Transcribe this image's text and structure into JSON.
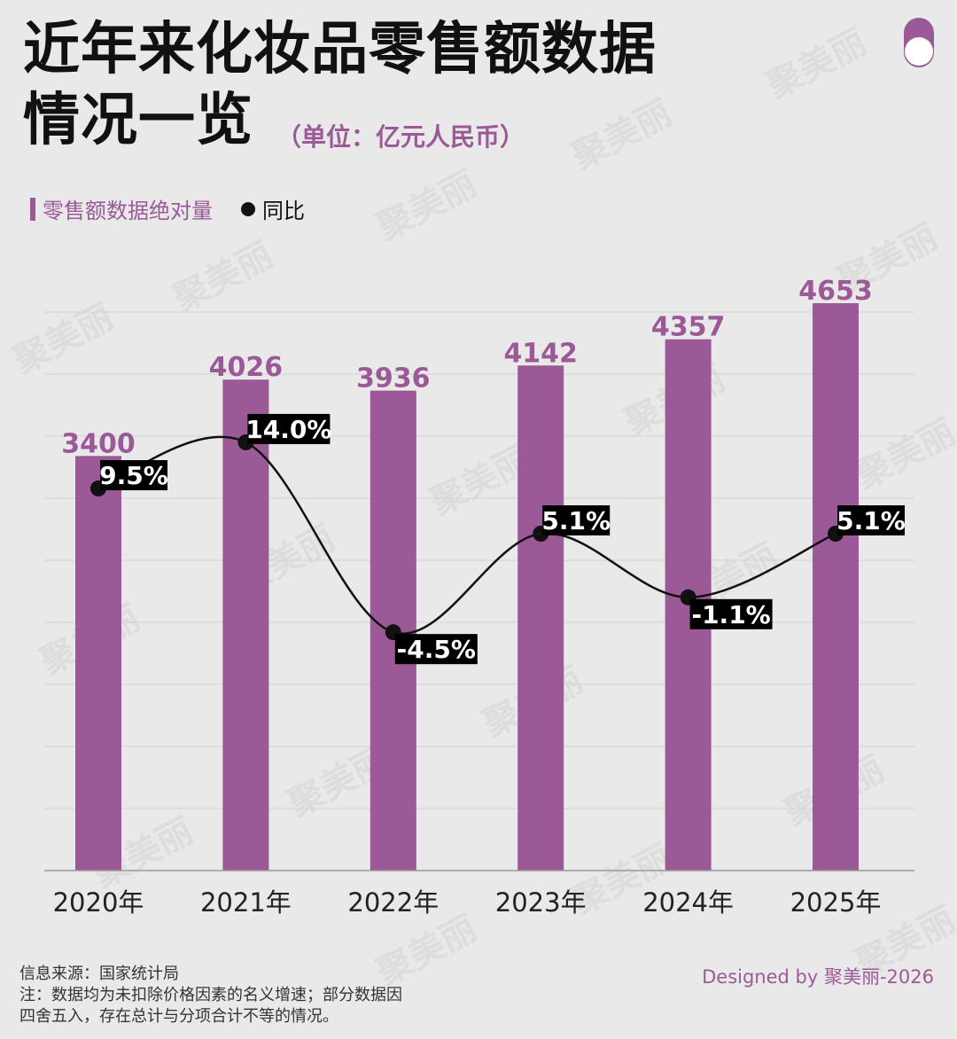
{
  "header": {
    "title_line1": "近年来化妆品零售额数据",
    "title_line2": "情况一览",
    "unit": "（单位：亿元人民币）"
  },
  "legend": {
    "bar_label": "零售额数据绝对量",
    "dot_label": "同比"
  },
  "watermark": "聚美丽",
  "chart_data": {
    "type": "bar",
    "categories": [
      "2020年",
      "2021年",
      "2022年",
      "2023年",
      "2024年",
      "2025年"
    ],
    "series": [
      {
        "name": "零售额数据绝对量",
        "values": [
          3400,
          4026,
          3936,
          4142,
          4357,
          4653
        ],
        "labels": [
          "3400",
          "4026",
          "3936",
          "4142",
          "4357",
          "4653"
        ]
      },
      {
        "name": "同比",
        "type": "line",
        "values": [
          9.5,
          14.0,
          -4.5,
          5.1,
          -1.1,
          5.1
        ],
        "labels": [
          "9.5%",
          "14.0%",
          "-4.5%",
          "5.1%",
          "-1.1%",
          "5.1%"
        ]
      }
    ],
    "colors": {
      "bar": "#9b5a97",
      "line": "#111111",
      "label_bg": "#000000"
    },
    "grid": true
  },
  "footer": {
    "source_line1": "信息来源：国家统计局",
    "source_line2": "注：数据均为未扣除价格因素的名义增速；部分数据因",
    "source_line3": "四舍五入，存在总计与分项合计不等的情况。",
    "designed_by": "Designed by 聚美丽-2026"
  }
}
